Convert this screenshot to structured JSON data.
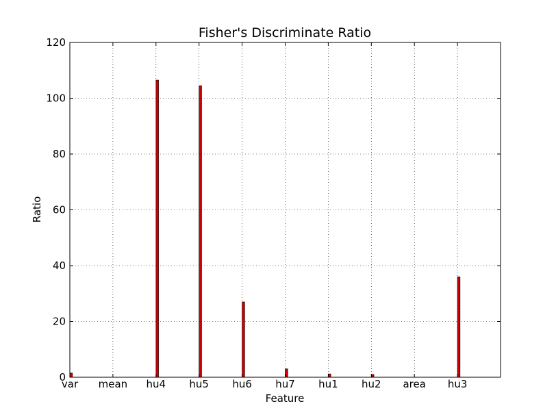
{
  "chart_data": {
    "type": "bar",
    "title": "Fisher's Discriminate Ratio",
    "xlabel": "Feature",
    "ylabel": "Ratio",
    "categories": [
      "var",
      "mean",
      "hu4",
      "hu5",
      "hu6",
      "hu7",
      "hu1",
      "hu2",
      "area",
      "hu3"
    ],
    "values": [
      1.5,
      0.0,
      106.5,
      104.5,
      27.0,
      3.0,
      1.2,
      1.0,
      0.0,
      36.0
    ],
    "ylim": [
      0,
      120
    ],
    "xlim": [
      0,
      10
    ],
    "yticks": [
      0,
      20,
      40,
      60,
      80,
      100,
      120
    ],
    "grid": true,
    "bar_color": "#cc0000"
  }
}
